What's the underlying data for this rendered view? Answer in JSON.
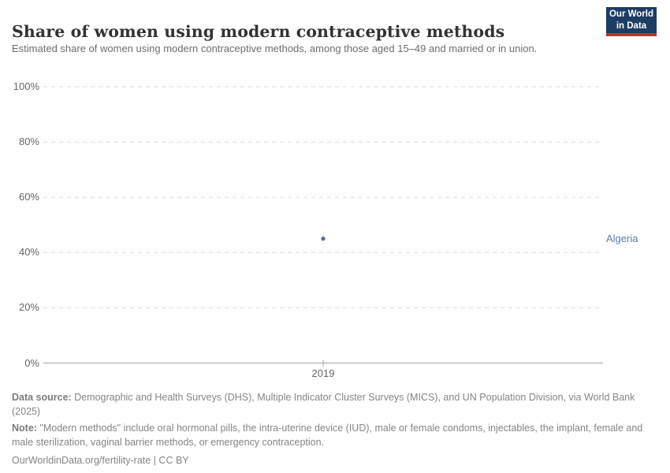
{
  "header": {
    "title": "Share of women using modern contraceptive methods",
    "subtitle": "Estimated share of women using modern contraceptive methods, among those aged 15–49 and married or in union.",
    "logo": {
      "line1": "Our World",
      "line2": "in Data",
      "bg_color": "#1d3d63",
      "accent_color": "#c0312b"
    }
  },
  "chart_data": {
    "type": "scatter",
    "title": "Share of women using modern contraceptive methods",
    "x": [
      2019
    ],
    "x_tick_labels": [
      "2019"
    ],
    "series": [
      {
        "name": "Algeria",
        "values": [
          45
        ],
        "color": "#4c6a9c"
      }
    ],
    "ylim": [
      0,
      100
    ],
    "yticks": [
      0,
      20,
      40,
      60,
      80,
      100
    ],
    "ytick_labels": [
      "0%",
      "20%",
      "40%",
      "60%",
      "80%",
      "100%"
    ],
    "ylabel": "",
    "xlabel": "",
    "grid": "horizontal-dashed",
    "legend_position": "right-entity-label",
    "gridline_color": "#dcdcdc",
    "axis_color": "#c3c3c3",
    "tick_color": "#a8a8a8",
    "label_color": "#666666",
    "entity_label_color": "#577ca9"
  },
  "footer": {
    "data_source_label": "Data source:",
    "data_source_text": " Demographic and Health Surveys (DHS), Multiple Indicator Cluster Surveys (MICS), and UN Population Division, via World Bank (2025)",
    "note_label": "Note:",
    "note_text": " \"Modern methods\" include oral hormonal pills, the intra-uterine device (IUD), male or female condoms, injectables, the implant, female and male sterilization, vaginal barrier methods, or emergency contraception.",
    "url": "OurWorldinData.org/fertility-rate",
    "separator": " | ",
    "license": "CC BY"
  }
}
